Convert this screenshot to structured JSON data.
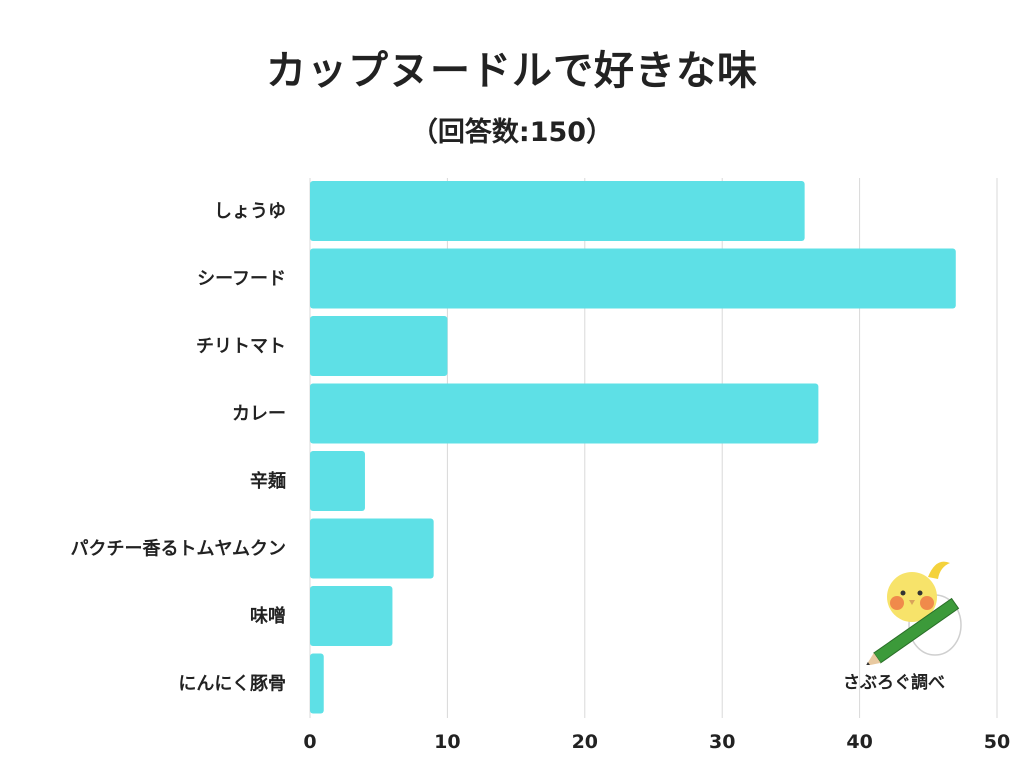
{
  "title": "カップヌードルで好きな味",
  "subtitle": "（回答数:150）",
  "chart_data": {
    "type": "bar",
    "orientation": "horizontal",
    "categories": [
      "しょうゆ",
      "シーフード",
      "チリトマト",
      "カレー",
      "辛麺",
      "パクチー香るトムヤムクン",
      "味噌",
      "にんにく豚骨"
    ],
    "values": [
      36,
      47,
      10,
      37,
      4,
      9,
      6,
      1
    ],
    "xlim": [
      0,
      50
    ],
    "xticks": [
      0,
      10,
      20,
      30,
      40,
      50
    ],
    "grid": true,
    "bar_color": "#5ee0e6"
  },
  "brand": {
    "label": "さぶろぐ調べ",
    "icon": "cockatiel-with-pencil-icon"
  }
}
